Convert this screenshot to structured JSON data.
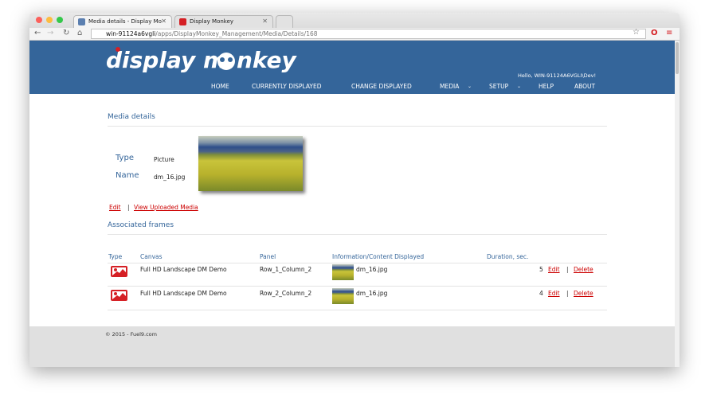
{
  "browser": {
    "tabs": [
      {
        "label": "Media details - Display Mo",
        "active": true
      },
      {
        "label": "Display Monkey",
        "active": false
      }
    ],
    "url_host": "win-91124a6vgli",
    "url_path": "/apps/DisplayMonkey_Management/Media/Details/168"
  },
  "header": {
    "logo": "display monkey",
    "greeting": "Hello, WIN-91124A6VGLI\\Dev!",
    "nav": [
      "HOME",
      "CURRENTLY DISPLAYED",
      "CHANGE DISPLAYED",
      "MEDIA",
      "SETUP",
      "HELP",
      "ABOUT"
    ],
    "color": "#34659a"
  },
  "details": {
    "title": "Media details",
    "type_label": "Type",
    "type_value": "Picture",
    "name_label": "Name",
    "name_value": "dm_16.jpg",
    "edit_link": "Edit",
    "separator": "|",
    "view_link": "View Uploaded Media"
  },
  "frames": {
    "title": "Associated frames",
    "columns": [
      "Type",
      "Canvas",
      "Panel",
      "Information/Content Displayed",
      "Duration, sec."
    ],
    "rows": [
      {
        "canvas": "Full HD Landscape DM Demo",
        "panel": "Row_1_Column_2",
        "content": "dm_16.jpg",
        "duration": "5",
        "edit": "Edit",
        "sep": "|",
        "delete": "Delete"
      },
      {
        "canvas": "Full HD Landscape DM Demo",
        "panel": "Row_2_Column_2",
        "content": "dm_16.jpg",
        "duration": "4",
        "edit": "Edit",
        "sep": "|",
        "delete": "Delete"
      }
    ]
  },
  "footer": {
    "text": "© 2015 - Fuel9.com"
  }
}
